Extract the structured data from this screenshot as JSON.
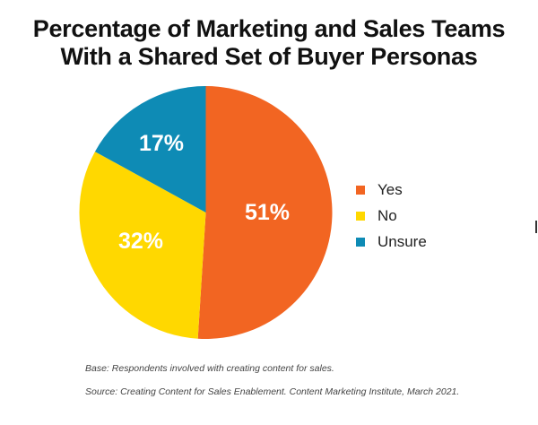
{
  "title": {
    "line1": "Percentage of Marketing and Sales Teams",
    "line2": "With a Shared Set of Buyer Personas"
  },
  "legend": [
    {
      "label": "Yes",
      "color": "#F26522"
    },
    {
      "label": "No",
      "color": "#FFD800"
    },
    {
      "label": "Unsure",
      "color": "#0E8BB5"
    }
  ],
  "slices": [
    {
      "label": "51%"
    },
    {
      "label": "32%"
    },
    {
      "label": "17%"
    }
  ],
  "notes": {
    "base": "Base: Respondents involved with creating content for sales.",
    "source": "Source: Creating Content for Sales Enablement. Content Marketing Institute, March 2021."
  },
  "chart_data": {
    "type": "pie",
    "title": "Percentage of Marketing and Sales Teams With a Shared Set of Buyer Personas",
    "categories": [
      "Yes",
      "No",
      "Unsure"
    ],
    "values": [
      51,
      32,
      17
    ],
    "unit": "%",
    "colors": [
      "#F26522",
      "#FFD800",
      "#0E8BB5"
    ],
    "start_angle": "12 o'clock, clockwise",
    "legend_position": "right",
    "footnotes": [
      "Base: Respondents involved with creating content for sales.",
      "Source: Creating Content for Sales Enablement. Content Marketing Institute, March 2021."
    ]
  }
}
